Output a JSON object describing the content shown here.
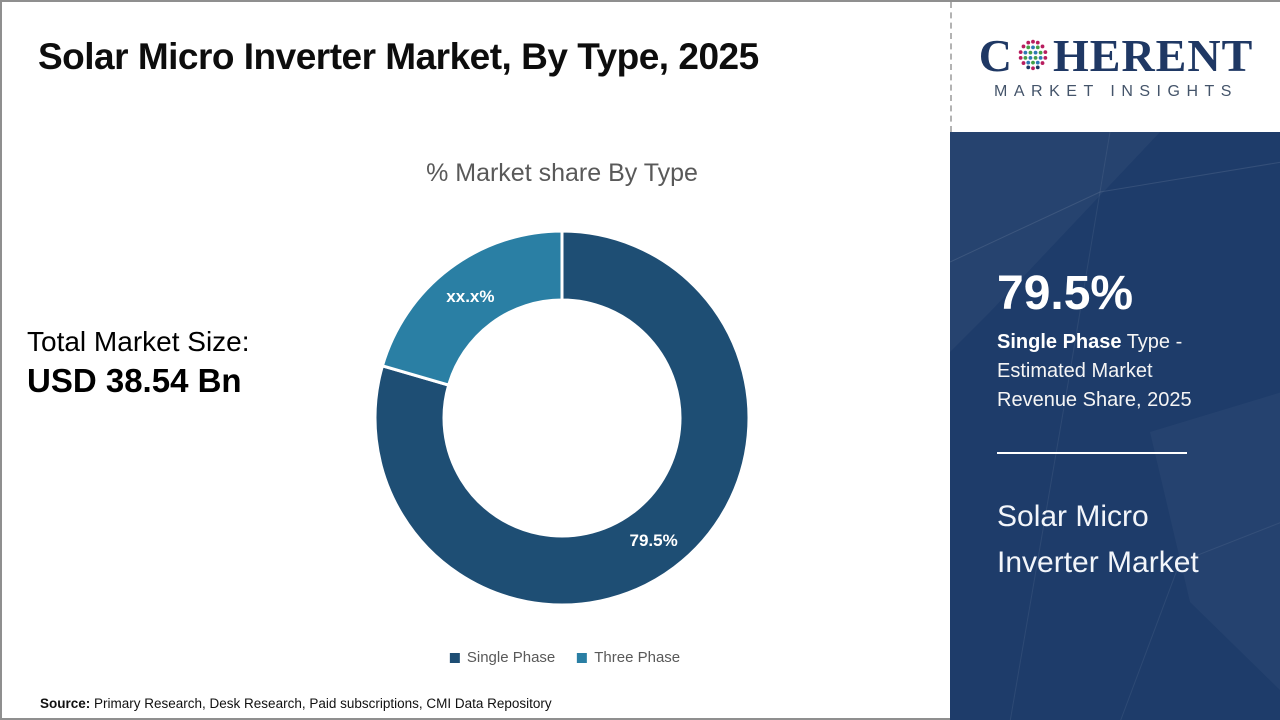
{
  "header": {
    "title": "Solar Micro Inverter Market, By Type, 2025"
  },
  "logo": {
    "name_part1": "C",
    "name_part2": "HERENT",
    "subtitle": "MARKET INSIGHTS"
  },
  "total_market": {
    "label": "Total Market Size:",
    "value": "USD 38.54 Bn"
  },
  "chart_data": {
    "type": "pie",
    "subtype": "donut",
    "title": "% Market share By Type",
    "categories": [
      "Single Phase",
      "Three Phase"
    ],
    "values": [
      79.5,
      20.5
    ],
    "display_labels": [
      "79.5%",
      "xx.x%"
    ],
    "colors": [
      "#1e4e74",
      "#2a7fa4"
    ],
    "note": "Three Phase share value masked as xx.x% in the image",
    "legend_position": "bottom",
    "start_angle_deg": 0,
    "inner_radius_px": 118,
    "outer_radius_px": 187
  },
  "sidebar": {
    "stat_value": "79.5%",
    "desc_bold": "Single Phase",
    "desc_rest": " Type - Estimated Market Revenue Share, 2025",
    "product": "Solar Micro Inverter Market",
    "background_color": "#1e3c6a"
  },
  "source": {
    "label": "Source:",
    "text": " Primary Research, Desk Research, Paid subscriptions, CMI Data Repository"
  }
}
